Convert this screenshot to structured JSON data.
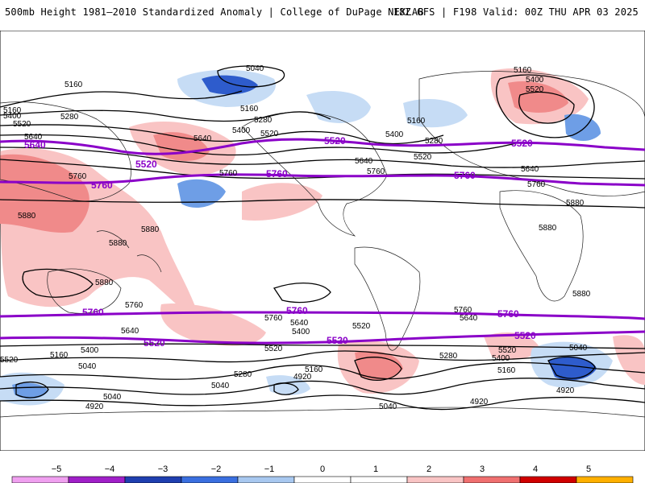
{
  "header": {
    "left": "500mb Height 1981–2010 Standardized Anomaly | College of DuPage NEXLAB",
    "right": "18Z GFS | F198 Valid: 00Z THU APR 03 2025"
  },
  "colors": {
    "height_contour": "#000000",
    "highlight_contour": "#8a00c8",
    "positive_light": "#f9c4c4",
    "positive_mid": "#f08a8a",
    "positive_strong": "#e04848",
    "negative_light": "#c6dcf5",
    "negative_mid": "#6e9ee6",
    "negative_strong": "#2e5ccc"
  },
  "contour_labels": [
    {
      "id": "l1",
      "text": "5040"
    },
    {
      "id": "l2",
      "text": "5160"
    },
    {
      "id": "l3",
      "text": "5160"
    },
    {
      "id": "l4",
      "text": "5400"
    },
    {
      "id": "l5",
      "text": "5520"
    },
    {
      "id": "l6",
      "text": "5280"
    },
    {
      "id": "l7",
      "text": "5160"
    },
    {
      "id": "l8",
      "text": "5280"
    },
    {
      "id": "l9",
      "text": "5400"
    },
    {
      "id": "l10",
      "text": "5520"
    },
    {
      "id": "l11",
      "text": "5640"
    },
    {
      "id": "l12",
      "text": "5640"
    },
    {
      "id": "l13",
      "text": "5760"
    },
    {
      "id": "l14",
      "text": "5760"
    },
    {
      "id": "l15",
      "text": "5880"
    },
    {
      "id": "l16",
      "text": "5880"
    },
    {
      "id": "l17",
      "text": "5880"
    },
    {
      "id": "l18",
      "text": "5880"
    },
    {
      "id": "l19",
      "text": "5160"
    },
    {
      "id": "l20",
      "text": "5400"
    },
    {
      "id": "l21",
      "text": "5280"
    },
    {
      "id": "l22",
      "text": "5520"
    },
    {
      "id": "l23",
      "text": "5640"
    },
    {
      "id": "l24",
      "text": "5760"
    },
    {
      "id": "l25",
      "text": "5160"
    },
    {
      "id": "l26",
      "text": "5400"
    },
    {
      "id": "l27",
      "text": "5520"
    },
    {
      "id": "l28",
      "text": "5640"
    },
    {
      "id": "l29",
      "text": "5760"
    },
    {
      "id": "l30",
      "text": "5880"
    },
    {
      "id": "l31",
      "text": "5880"
    },
    {
      "id": "l32",
      "text": "5880"
    },
    {
      "id": "l33",
      "text": "5760"
    },
    {
      "id": "l34",
      "text": "5640"
    },
    {
      "id": "l35",
      "text": "5520"
    },
    {
      "id": "l36",
      "text": "5400"
    },
    {
      "id": "l37",
      "text": "5160"
    },
    {
      "id": "l38",
      "text": "5040"
    },
    {
      "id": "l39",
      "text": "4920"
    },
    {
      "id": "l40",
      "text": "5040"
    },
    {
      "id": "l41",
      "text": "5280"
    },
    {
      "id": "l42",
      "text": "5040"
    },
    {
      "id": "l43",
      "text": "5160"
    },
    {
      "id": "l44",
      "text": "4920"
    },
    {
      "id": "l45",
      "text": "5640"
    },
    {
      "id": "l46",
      "text": "5400"
    },
    {
      "id": "l47",
      "text": "5520"
    },
    {
      "id": "l48",
      "text": "5280"
    },
    {
      "id": "l49",
      "text": "5040"
    },
    {
      "id": "l50",
      "text": "5760"
    },
    {
      "id": "l51",
      "text": "5640"
    },
    {
      "id": "l52",
      "text": "5520"
    },
    {
      "id": "l53",
      "text": "5400"
    },
    {
      "id": "l54",
      "text": "5160"
    },
    {
      "id": "l55",
      "text": "5040"
    },
    {
      "id": "l56",
      "text": "4920"
    },
    {
      "id": "l57",
      "text": "4920"
    },
    {
      "id": "l58",
      "text": "5520"
    },
    {
      "id": "l59",
      "text": "5760"
    }
  ],
  "highlight_labels": [
    {
      "id": "h1",
      "text": "5640"
    },
    {
      "id": "h2",
      "text": "5520"
    },
    {
      "id": "h3",
      "text": "5760"
    },
    {
      "id": "h4",
      "text": "5520"
    },
    {
      "id": "h5",
      "text": "5760"
    },
    {
      "id": "h6",
      "text": "5760"
    },
    {
      "id": "h7",
      "text": "5520"
    },
    {
      "id": "h8",
      "text": "5760"
    },
    {
      "id": "h9",
      "text": "5760"
    },
    {
      "id": "h10",
      "text": "5520"
    },
    {
      "id": "h11",
      "text": "5520"
    },
    {
      "id": "h12",
      "text": "5520"
    }
  ],
  "colorbar": {
    "ticks": [
      "−5",
      "−4",
      "−3",
      "−2",
      "−1",
      "0",
      "1",
      "2",
      "3",
      "4",
      "5"
    ],
    "colors": [
      "#f0a0f0",
      "#a020c8",
      "#1f3fb0",
      "#3a6fe0",
      "#a8c8f0",
      "#ffffff",
      "#ffffff",
      "#f9c4c4",
      "#f07070",
      "#d00000",
      "#ffb000"
    ]
  }
}
